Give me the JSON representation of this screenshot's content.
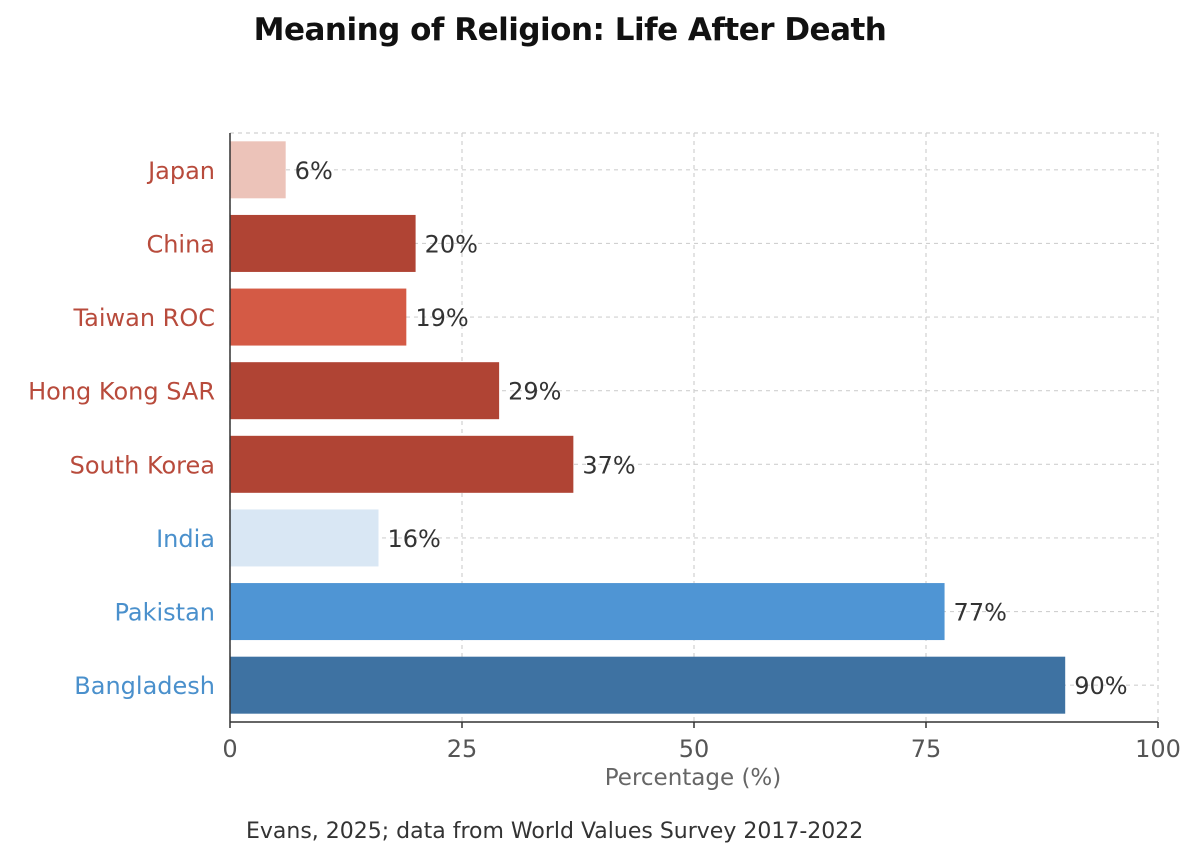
{
  "chart_data": {
    "type": "bar",
    "orientation": "horizontal",
    "title": "Meaning of Religion: Life After Death",
    "xlabel": "Percentage (%)",
    "ylabel": "",
    "xlim": [
      0,
      100
    ],
    "x_ticks": [
      "0",
      "25",
      "50",
      "75",
      "100"
    ],
    "grid": true,
    "categories": [
      "Japan",
      "China",
      "Taiwan ROC",
      "Hong Kong SAR",
      "South Korea",
      "India",
      "Pakistan",
      "Bangladesh"
    ],
    "values": [
      6,
      20,
      19,
      29,
      37,
      16,
      77,
      90
    ],
    "value_labels": [
      "6%",
      "20%",
      "19%",
      "29%",
      "37%",
      "16%",
      "77%",
      "90%"
    ],
    "bar_colors": [
      "#ecc3b9",
      "#b04434",
      "#d45a45",
      "#b04434",
      "#b04434",
      "#d9e7f4",
      "#4f95d4",
      "#3e72a2"
    ],
    "category_label_colors": [
      "#b84b3c",
      "#b84b3c",
      "#b84b3c",
      "#b84b3c",
      "#b84b3c",
      "#4a90cc",
      "#4a90cc",
      "#4a90cc"
    ]
  },
  "source": "Evans, 2025; data from World Values Survey 2017-2022"
}
